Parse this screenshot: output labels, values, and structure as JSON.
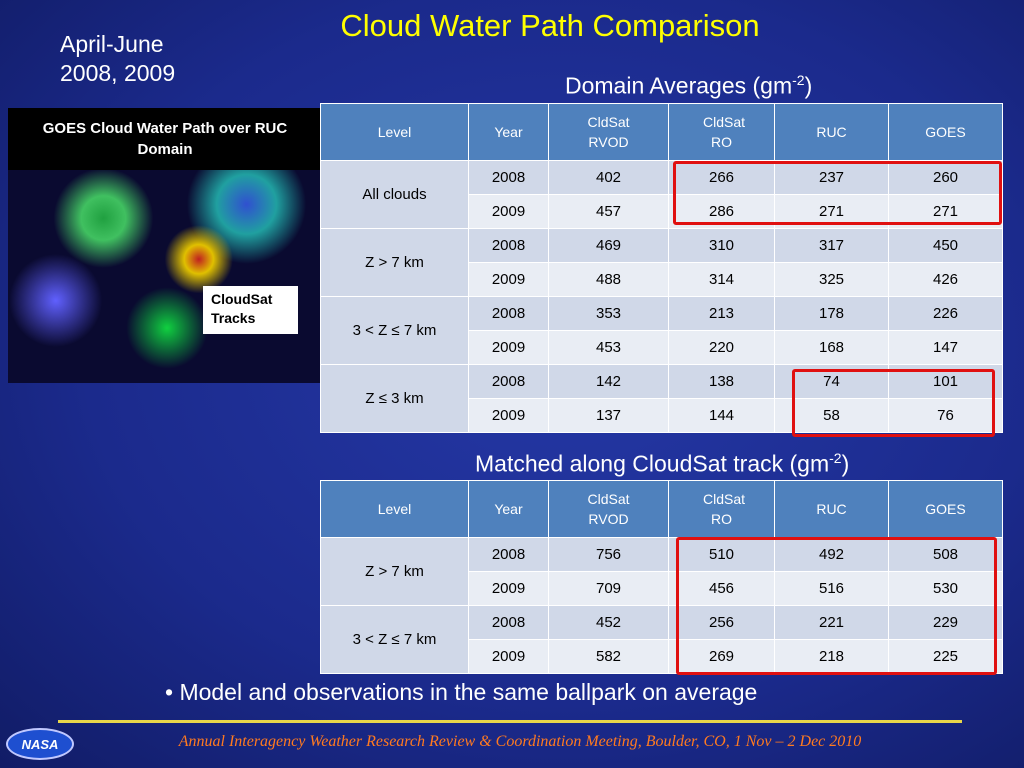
{
  "header": {
    "title": "Cloud Water Path Comparison",
    "period": [
      "April-June",
      "2008, 2009"
    ]
  },
  "map": {
    "caption": "GOES Cloud Water Path over RUC Domain",
    "label": "CloudSat Tracks"
  },
  "tables": [
    {
      "heading": {
        "text": "Domain Averages (gm",
        "sup": "-2",
        "close": ")"
      },
      "columns": [
        "Level",
        "Year",
        "CldSat RVOD",
        "CldSat RO",
        "RUC",
        "GOES"
      ],
      "groups": [
        {
          "level": "All clouds",
          "rows": [
            [
              2008,
              402,
              266,
              237,
              260
            ],
            [
              2009,
              457,
              286,
              271,
              271
            ]
          ]
        },
        {
          "level": "Z  > 7 km",
          "rows": [
            [
              2008,
              469,
              310,
              317,
              450
            ],
            [
              2009,
              488,
              314,
              325,
              426
            ]
          ]
        },
        {
          "level": "3 < Z ≤ 7 km",
          "rows": [
            [
              2008,
              353,
              213,
              178,
              226
            ],
            [
              2009,
              453,
              220,
              168,
              147
            ]
          ]
        },
        {
          "level": "Z ≤ 3 km",
          "rows": [
            [
              2008,
              142,
              138,
              74,
              101
            ],
            [
              2009,
              137,
              144,
              58,
              76
            ]
          ]
        }
      ]
    },
    {
      "heading": {
        "text": "Matched along CloudSat track (gm",
        "sup": "-2",
        "close": ")"
      },
      "columns": [
        "Level",
        "Year",
        "CldSat RVOD",
        "CldSat RO",
        "RUC",
        "GOES"
      ],
      "groups": [
        {
          "level": "Z  > 7 km",
          "rows": [
            [
              2008,
              756,
              510,
              492,
              508
            ],
            [
              2009,
              709,
              456,
              516,
              530
            ]
          ]
        },
        {
          "level": "3 < Z ≤ 7 km",
          "rows": [
            [
              2008,
              452,
              256,
              221,
              229
            ],
            [
              2009,
              582,
              269,
              218,
              225
            ]
          ]
        }
      ]
    }
  ],
  "bullet": "• Model and observations in the same ballpark on average",
  "footer": {
    "logo": "NASA",
    "text": "Annual Interagency Weather Research Review & Coordination Meeting, Boulder, CO, 1 Nov – 2 Dec 2010"
  }
}
